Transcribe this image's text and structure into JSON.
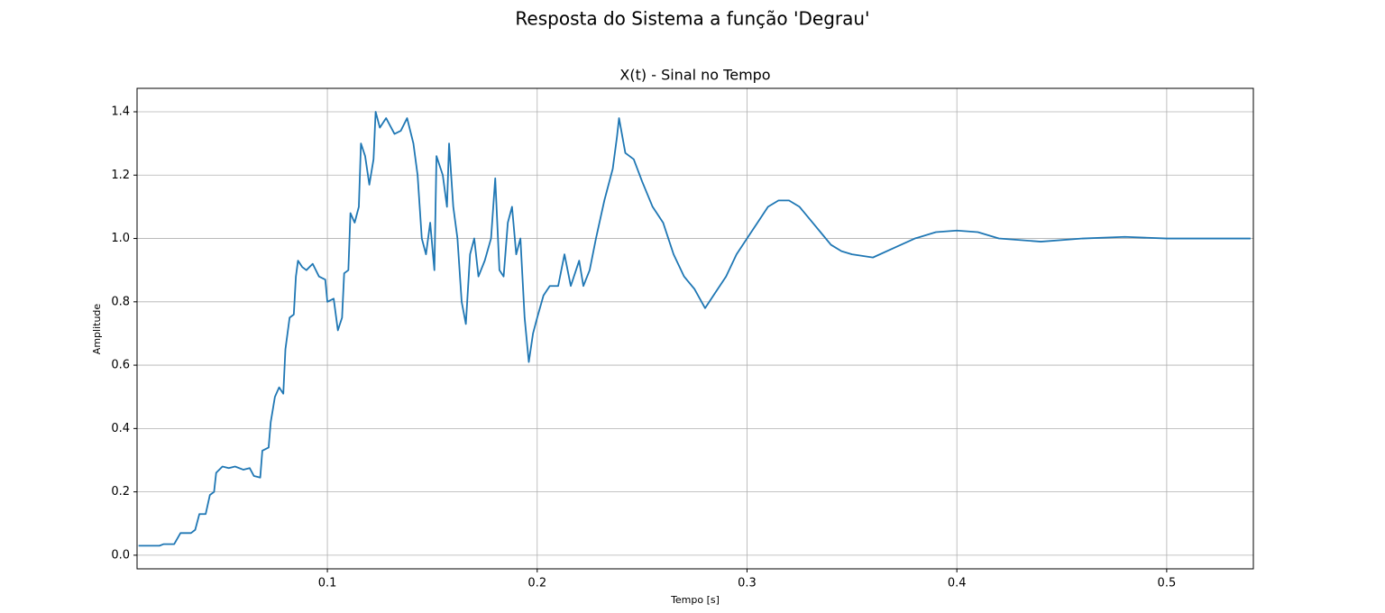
{
  "chart_data": {
    "type": "line",
    "suptitle": "Resposta do Sistema a função 'Degrau'",
    "title": "X(t) - Sinal no Tempo",
    "xlabel": "Tempo [s]",
    "ylabel": "Amplitude",
    "xlim": [
      0.0093,
      0.5413
    ],
    "ylim": [
      -0.043,
      1.474
    ],
    "xticks": [
      0.1,
      0.2,
      0.3,
      0.4,
      0.5
    ],
    "yticks": [
      {
        "value": 0,
        "label": "0.0"
      },
      0.2,
      0.4,
      0.6,
      0.8,
      {
        "value": 1,
        "label": "1.0"
      },
      1.2,
      1.4
    ],
    "grid": true,
    "series": [
      {
        "color": "#1f77b4",
        "x": [
          0.01,
          0.02,
          0.022,
          0.027,
          0.03,
          0.035,
          0.037,
          0.039,
          0.042,
          0.044,
          0.046,
          0.047,
          0.05,
          0.053,
          0.056,
          0.06,
          0.063,
          0.065,
          0.068,
          0.069,
          0.072,
          0.073,
          0.075,
          0.077,
          0.079,
          0.08,
          0.082,
          0.084,
          0.085,
          0.086,
          0.088,
          0.09,
          0.093,
          0.096,
          0.099,
          0.1,
          0.103,
          0.105,
          0.107,
          0.108,
          0.11,
          0.111,
          0.113,
          0.115,
          0.116,
          0.118,
          0.12,
          0.122,
          0.123,
          0.125,
          0.128,
          0.132,
          0.135,
          0.138,
          0.141,
          0.143,
          0.145,
          0.147,
          0.149,
          0.151,
          0.152,
          0.155,
          0.157,
          0.158,
          0.16,
          0.162,
          0.164,
          0.166,
          0.168,
          0.17,
          0.172,
          0.175,
          0.178,
          0.18,
          0.182,
          0.184,
          0.186,
          0.188,
          0.19,
          0.192,
          0.194,
          0.196,
          0.198,
          0.2,
          0.203,
          0.206,
          0.21,
          0.213,
          0.216,
          0.22,
          0.222,
          0.225,
          0.228,
          0.232,
          0.236,
          0.238,
          0.239,
          0.242,
          0.246,
          0.25,
          0.255,
          0.26,
          0.265,
          0.27,
          0.275,
          0.28,
          0.285,
          0.29,
          0.295,
          0.3,
          0.305,
          0.31,
          0.315,
          0.32,
          0.325,
          0.33,
          0.335,
          0.34,
          0.345,
          0.35,
          0.36,
          0.37,
          0.38,
          0.39,
          0.4,
          0.41,
          0.42,
          0.44,
          0.46,
          0.48,
          0.5,
          0.54
        ],
        "values": [
          0.03,
          0.03,
          0.035,
          0.035,
          0.07,
          0.07,
          0.08,
          0.13,
          0.13,
          0.19,
          0.2,
          0.26,
          0.28,
          0.275,
          0.28,
          0.27,
          0.275,
          0.25,
          0.245,
          0.33,
          0.34,
          0.42,
          0.5,
          0.53,
          0.51,
          0.65,
          0.75,
          0.76,
          0.88,
          0.93,
          0.91,
          0.9,
          0.92,
          0.88,
          0.87,
          0.8,
          0.81,
          0.71,
          0.75,
          0.89,
          0.9,
          1.08,
          1.05,
          1.1,
          1.3,
          1.26,
          1.17,
          1.25,
          1.4,
          1.35,
          1.38,
          1.33,
          1.34,
          1.38,
          1.3,
          1.2,
          1.0,
          0.95,
          1.05,
          0.9,
          1.26,
          1.2,
          1.1,
          1.3,
          1.1,
          1.0,
          0.8,
          0.73,
          0.95,
          1.0,
          0.88,
          0.93,
          1.0,
          1.19,
          0.9,
          0.88,
          1.05,
          1.1,
          0.95,
          1.0,
          0.75,
          0.61,
          0.7,
          0.75,
          0.82,
          0.85,
          0.85,
          0.95,
          0.85,
          0.93,
          0.85,
          0.9,
          1.0,
          1.12,
          1.22,
          1.32,
          1.38,
          1.27,
          1.25,
          1.18,
          1.1,
          1.05,
          0.95,
          0.88,
          0.84,
          0.78,
          0.83,
          0.88,
          0.95,
          1.0,
          1.05,
          1.1,
          1.12,
          1.12,
          1.1,
          1.06,
          1.02,
          0.98,
          0.96,
          0.95,
          0.94,
          0.97,
          1.0,
          1.02,
          1.025,
          1.02,
          1.0,
          0.99,
          1.0,
          1.005,
          1.0,
          1.0
        ]
      }
    ]
  }
}
